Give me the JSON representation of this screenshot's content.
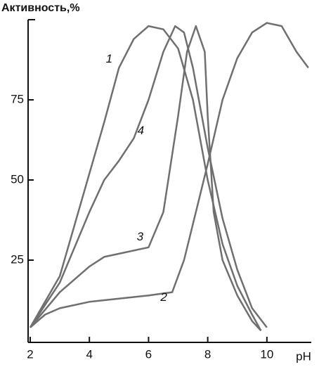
{
  "chart_data": {
    "type": "line",
    "y_label": "Активность,%",
    "x_label": "pH",
    "xlim": [
      2,
      11.5
    ],
    "xticks": [
      2,
      4,
      6,
      8,
      10
    ],
    "ylim": [
      0,
      100
    ],
    "yticks": [
      25,
      50,
      75
    ],
    "series": [
      {
        "name": "1",
        "color": "#6f6f6f",
        "x": [
          2,
          3,
          4,
          4.5,
          5,
          5.5,
          6,
          6.5,
          7,
          7.5,
          8,
          8.5,
          9,
          9.5,
          9.8
        ],
        "values": [
          4,
          20,
          52,
          68,
          85,
          94,
          98,
          97,
          91,
          75,
          50,
          30,
          17,
          8,
          3
        ]
      },
      {
        "name": "2",
        "color": "#6f6f6f",
        "x": [
          2,
          2.5,
          3,
          4,
          5,
          6,
          6.8,
          7.2,
          7.6,
          8,
          8.5,
          9,
          9.5,
          10,
          10.5,
          11,
          11.4
        ],
        "values": [
          4,
          8,
          10,
          12,
          13,
          14,
          15,
          25,
          40,
          55,
          75,
          88,
          96,
          99,
          98,
          90,
          85
        ]
      },
      {
        "name": "3",
        "color": "#6f6f6f",
        "x": [
          2,
          3,
          4,
          4.5,
          5,
          6,
          6.5,
          7,
          7.3,
          7.6,
          7.9,
          8,
          8.2,
          8.5,
          9,
          9.5,
          9.8
        ],
        "values": [
          4,
          15,
          23,
          26,
          27,
          29,
          40,
          70,
          90,
          98,
          90,
          70,
          40,
          25,
          14,
          6,
          3
        ]
      },
      {
        "name": "4",
        "color": "#6f6f6f",
        "x": [
          2,
          3,
          4,
          4.5,
          5,
          5.5,
          6,
          6.5,
          6.9,
          7.2,
          7.5,
          8,
          8.5,
          9,
          9.5,
          10
        ],
        "values": [
          4,
          18,
          40,
          50,
          56,
          63,
          75,
          90,
          98,
          96,
          85,
          60,
          38,
          22,
          10,
          4
        ]
      }
    ]
  }
}
